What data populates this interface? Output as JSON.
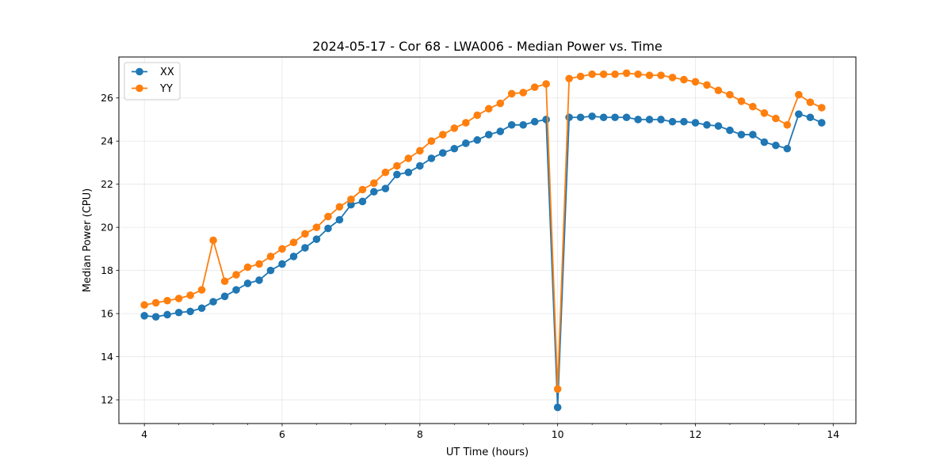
{
  "chart_data": {
    "type": "line",
    "title": "2024-05-17 - Cor 68 - LWA006 - Median Power vs. Time",
    "xlabel": "UT Time (hours)",
    "ylabel": "Median Power (CPU)",
    "xlim": [
      3.63,
      14.33
    ],
    "ylim": [
      10.9,
      27.9
    ],
    "xticks": [
      4,
      6,
      8,
      10,
      12,
      14
    ],
    "yticks": [
      12,
      14,
      16,
      18,
      20,
      22,
      24,
      26
    ],
    "grid": true,
    "legend_position": "upper-left",
    "x": [
      4.0,
      4.167,
      4.333,
      4.5,
      4.667,
      4.833,
      5.0,
      5.167,
      5.333,
      5.5,
      5.667,
      5.833,
      6.0,
      6.167,
      6.333,
      6.5,
      6.667,
      6.833,
      7.0,
      7.167,
      7.333,
      7.5,
      7.667,
      7.833,
      8.0,
      8.167,
      8.333,
      8.5,
      8.667,
      8.833,
      9.0,
      9.167,
      9.333,
      9.5,
      9.667,
      9.833,
      10.0,
      10.167,
      10.333,
      10.5,
      10.667,
      10.833,
      11.0,
      11.167,
      11.333,
      11.5,
      11.667,
      11.833,
      12.0,
      12.167,
      12.333,
      12.5,
      12.667,
      12.833,
      13.0,
      13.167,
      13.333,
      13.5,
      13.667,
      13.833
    ],
    "series": [
      {
        "name": "XX",
        "color": "#1f77b4",
        "values": [
          15.9,
          15.85,
          15.95,
          16.05,
          16.1,
          16.25,
          16.55,
          16.8,
          17.1,
          17.4,
          17.55,
          18.0,
          18.3,
          18.65,
          19.05,
          19.45,
          19.95,
          20.35,
          21.05,
          21.2,
          21.65,
          21.8,
          22.45,
          22.55,
          22.85,
          23.2,
          23.45,
          23.65,
          23.9,
          24.05,
          24.3,
          24.45,
          24.75,
          24.75,
          24.9,
          25.0,
          11.65,
          25.1,
          25.1,
          25.15,
          25.1,
          25.1,
          25.1,
          25.0,
          25.0,
          25.0,
          24.9,
          24.9,
          24.85,
          24.75,
          24.7,
          24.5,
          24.3,
          24.3,
          23.95,
          23.8,
          23.65,
          25.25,
          25.1,
          24.85
        ]
      },
      {
        "name": "YY",
        "color": "#ff7f0e",
        "values": [
          16.4,
          16.5,
          16.6,
          16.7,
          16.85,
          17.1,
          19.4,
          17.5,
          17.8,
          18.15,
          18.3,
          18.65,
          19.0,
          19.3,
          19.7,
          20.0,
          20.5,
          20.95,
          21.3,
          21.75,
          22.05,
          22.55,
          22.85,
          23.2,
          23.55,
          24.0,
          24.3,
          24.6,
          24.85,
          25.2,
          25.5,
          25.75,
          26.2,
          26.25,
          26.5,
          26.65,
          12.5,
          26.9,
          27.0,
          27.1,
          27.1,
          27.1,
          27.15,
          27.1,
          27.05,
          27.05,
          26.95,
          26.85,
          26.75,
          26.6,
          26.35,
          26.15,
          25.85,
          25.6,
          25.3,
          25.05,
          24.75,
          26.15,
          25.8,
          25.55
        ]
      }
    ]
  }
}
